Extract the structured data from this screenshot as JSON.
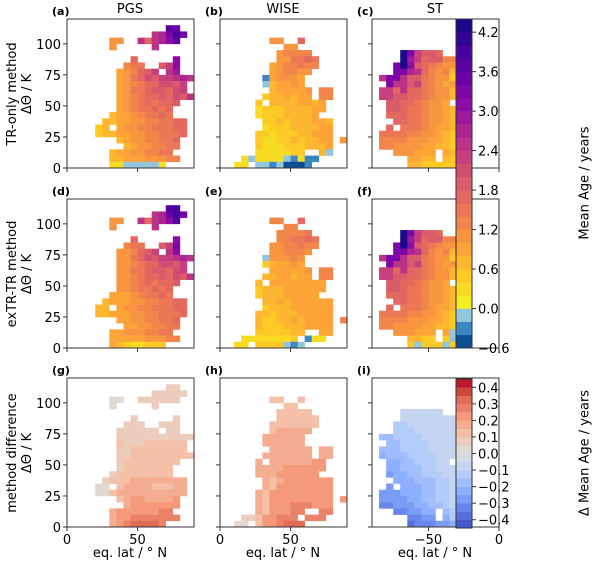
{
  "column_titles": [
    "PGS",
    "WISE",
    "ST"
  ],
  "row_labels": [
    {
      "line1": "TR-only method",
      "line2": "ΔΘ / K"
    },
    {
      "line1": "exTR-TR method",
      "line2": "ΔΘ / K"
    },
    {
      "line1": "method difference",
      "line2": "ΔΘ / K"
    }
  ],
  "xlabels": [
    "eq. lat / ° N",
    "eq. lat / ° N",
    "eq. lat / ° N"
  ],
  "colorbars": [
    {
      "label": "Mean Age / years",
      "range": [
        -0.6,
        4.4
      ],
      "ticks": [
        "4.2",
        "3.6",
        "3.0",
        "2.4",
        "1.8",
        "1.2",
        "0.6",
        "0.0",
        "−0.6"
      ],
      "tick_values": [
        4.2,
        3.6,
        3.0,
        2.4,
        1.8,
        1.2,
        0.6,
        0.0,
        -0.6
      ],
      "step": 0.2,
      "colormap": "plasma_r with blues below 0"
    },
    {
      "label": "Δ Mean Age / years",
      "range": [
        -0.45,
        0.45
      ],
      "ticks": [
        "0.4",
        "0.3",
        "0.2",
        "0.1",
        "0.0",
        "−0.1",
        "−0.2",
        "−0.3",
        "−0.4"
      ],
      "tick_values": [
        0.4,
        0.3,
        0.2,
        0.1,
        0.0,
        -0.1,
        -0.2,
        -0.3,
        -0.4
      ],
      "step": 0.05,
      "colormap": "coolwarm"
    }
  ],
  "codes": {
    "mean_age": {
      "positive_chars": "0123456789abcdefghijklm",
      "positive_step": 0.2,
      "negative": {
        "x": -0.1,
        "y": -0.3,
        "z": -0.5
      }
    },
    "difference": {
      "chars": "ABCDEFGHIJKLMNOPQR",
      "start": -0.45,
      "step": 0.05
    },
    "empty": ".",
    "theta_bin_K": 5,
    "lat_bin_deg": 5
  },
  "chart_data": [
    {
      "letter": "(a)",
      "type": "heatmap",
      "scale": "mean_age",
      "xlim": [
        0,
        90
      ],
      "ylim": [
        0,
        120
      ],
      "xticks": [
        0,
        50
      ],
      "xtick_labels": [
        "0",
        "50"
      ],
      "yticks": [
        0,
        25,
        50,
        75,
        100
      ],
      "ytick_labels": [
        "0",
        "25",
        "50",
        "75",
        "100"
      ],
      "rows_top_to_bottom": [
        "..................",
        "..............ih..",
        "............cdgjh.",
        "......55..c8cdfi..",
        "......5.....c.....",
        "..................",
        ".........8.....f..",
        "........677..9bf..",
        ".......45689b.ce..",
        ".......4578a9bbcdc",
        ".......456788aa9b.",
        ".......45778998ab.",
        ".......45678898a9c",
        ".......456787889..",
        ".......45677878...",
        "......344567787...",
        ".....334455667788.",
        "....23.4556677788.",
        "....2334455667778.",
        ".......345566778..",
        "........34556677..",
        "......344556677...",
        "......3344455566..",
        "......11xxxxx1...."
      ]
    },
    {
      "letter": "(b)",
      "type": "heatmap",
      "scale": "mean_age",
      "xlim": [
        0,
        90
      ],
      "ylim": [
        0,
        120
      ],
      "xticks": [
        0,
        50
      ],
      "xtick_labels": [
        "0",
        "50"
      ],
      "yticks": [
        0,
        25,
        50,
        75,
        100
      ],
      "ytick_labels": [],
      "rows_top_to_bottom": [
        "..................",
        "..................",
        "..................",
        ".......55..8......",
        ".........55.......",
        "........56666.....",
        "........557787....",
        ".......4566766....",
        ".......456655.....",
        "......y45554......",
        "......x34454......",
        ".......344445.66..",
        "......2334344.66..",
        ".....2.33334434...",
        ".....1222333344...",
        ".....122233334....",
        "......2232333443..",
        "......1222333344..",
        ".....22122233444..",
        ".....21122323344.5",
        ".....21112223334..",
        ".....1111122..3x..",
        "...1x1111xy1yy....",
        "..11.xxyxzzzy....."
      ]
    },
    {
      "letter": "(c)",
      "type": "heatmap",
      "scale": "mean_age",
      "xlim": [
        -90,
        0
      ],
      "ylim": [
        0,
        120
      ],
      "xticks": [
        -50,
        0
      ],
      "xtick_labels": [
        "−50",
        "0"
      ],
      "yticks": [
        0,
        25,
        50,
        75,
        100
      ],
      "ytick_labels": [],
      "rows_top_to_bottom": [
        "..................",
        "..................",
        "..................",
        "..................",
        "..................",
        "....lgb998........",
        "....leb89966......",
        "...glf987655......",
        "...ggdc86563......",
        ".cggc9976552......",
        "..gcc9b76545......",
        ".bb8c8876553......",
        ".bb998876553......",
        "..998876554.......",
        "..9987765543......",
        "..8887765543......",
        "...887765543......",
        "..8.77765443......",
        ".77776655432......",
        ".66665554432......",
        ".66555544332x.....",
        "...555444.43x.....",
        ".....4433.32x.....",
        ".....33222222....."
      ]
    },
    {
      "letter": "(d)",
      "type": "heatmap",
      "scale": "mean_age",
      "xlim": [
        0,
        90
      ],
      "ylim": [
        0,
        120
      ],
      "xticks": [
        0,
        50
      ],
      "xtick_labels": [
        "0",
        "50"
      ],
      "yticks": [
        0,
        25,
        50,
        75,
        100
      ],
      "ytick_labels": [
        "0",
        "25",
        "50",
        "75",
        "100"
      ],
      "rows_top_to_bottom": [
        "..................",
        "..............ij..",
        "............cdhjh.",
        "......55..c8cdfi..",
        "......5.....c.....",
        "..................",
        ".........8.....f..",
        "........677..9bg..",
        ".......55689b.cf..",
        ".......5578a9bbcdc",
        ".......556788aa9b.",
        ".......55778998ab.",
        ".......55678898a9c",
        ".......556787889..",
        ".......55677878...",
        "......444567787...",
        ".....344455667788.",
        "....33.4556677788.",
        "....3344455667778.",
        ".......445566778..",
        "........44556677..",
        "......445556677...",
        "......4444455566..",
        "......43211222...."
      ]
    },
    {
      "letter": "(e)",
      "type": "heatmap",
      "scale": "mean_age",
      "xlim": [
        0,
        90
      ],
      "ylim": [
        0,
        120
      ],
      "xticks": [
        0,
        50
      ],
      "xtick_labels": [
        "0",
        "50"
      ],
      "yticks": [
        0,
        25,
        50,
        75,
        100
      ],
      "ytick_labels": [],
      "rows_top_to_bottom": [
        "..................",
        "..................",
        "..................",
        ".......66..8......",
        ".........66.......",
        "........66667.....",
        "........667787....",
        ".......5566766....",
        ".......556665.....",
        "......x55565......",
        "......234454......",
        ".......444445.66..",
        "......3344344.66..",
        ".....3.44444444...",
        ".....2333444444...",
        ".....233344444....",
        "......3343444444..",
        "......2333444444..",
        ".....33233344444..",
        ".....32233434444.6",
        ".....32223334444..",
        ".....2222233..44..",
        "...11111112.y11...",
        "..11.2222xyx......"
      ]
    },
    {
      "letter": "(f)",
      "type": "heatmap",
      "scale": "mean_age",
      "xlim": [
        -90,
        0
      ],
      "ylim": [
        0,
        120
      ],
      "xticks": [
        -50,
        0
      ],
      "xtick_labels": [
        "−50",
        "0"
      ],
      "yticks": [
        0,
        25,
        50,
        75,
        100
      ],
      "ytick_labels": [],
      "rows_top_to_bottom": [
        "..................",
        "..................",
        "..................",
        "..................",
        "..................",
        "....lgb998........",
        "....leb89966......",
        "...glf987655......",
        "...ggdc86563......",
        ".cggc9976552......",
        "..gcc9b76545......",
        ".bb8c8876553......",
        ".bb998876553......",
        "..998876554.......",
        "..9987765543......",
        "..8887765543......",
        "...887765543......",
        "..8.77765443......",
        ".77776655432......",
        ".66665554432......",
        ".66555544332x.....",
        "...555444.4xx.....",
        ".....3322.2xx.....",
        ".....2x222x2x....."
      ]
    },
    {
      "letter": "(g)",
      "type": "heatmap",
      "scale": "difference",
      "xlim": [
        0,
        90
      ],
      "ylim": [
        0,
        120
      ],
      "xticks": [
        0,
        50
      ],
      "xtick_labels": [
        "0",
        "50"
      ],
      "yticks": [
        0,
        25,
        50,
        75,
        100
      ],
      "ytick_labels": [
        "0",
        "25",
        "50",
        "75",
        "100"
      ],
      "rows_top_to_bottom": [
        "..................",
        "..............KK..",
        "............KKKKK.",
        "......JJ..KKKKKK..",
        "......J.....K.....",
        "..................",
        ".........K.....K..",
        "........KKK..KKK..",
        ".......KKKKKK.KK..",
        ".......KKKKKKKKKKK",
        ".......LKKKLLLLLL.",
        ".......KKLLLLLLLL.",
        ".......KKLLLLLLLLL",
        ".......KLLLLLLLL..",
        ".......KLLLLLLL...",
        "......KLLLLLLLL...",
        ".....KLLLMMMMMMMM.",
        "....JJ.LMMMMLLLMM.",
        "....JJLMMMMMMMMMM.",
        ".......LMNNMMMMN..",
        "........MNNNNNNN..",
        "......MNNNNNNOO...",
        "......MNNOOOOOOO..",
        "......MNOPPPPO...."
      ]
    },
    {
      "letter": "(h)",
      "type": "heatmap",
      "scale": "difference",
      "xlim": [
        0,
        90
      ],
      "ylim": [
        0,
        120
      ],
      "xticks": [
        0,
        50
      ],
      "xtick_labels": [
        "0",
        "50"
      ],
      "yticks": [
        0,
        25,
        50,
        75,
        100
      ],
      "ytick_labels": [],
      "rows_top_to_bottom": [
        "..................",
        "..................",
        "..................",
        ".......LL..L......",
        ".........LL.......",
        "........LLLLL.....",
        "........LLLLLL....",
        ".......LLLLLLL....",
        ".......LMMMMM.....",
        "......MMMMMM......",
        "......MMMMMM......",
        ".......MMMMMM.MM..",
        "......MMMMMMM.MM..",
        ".....M.MMMMMMNN...",
        ".....MMMMNNNNNN...",
        ".....MMMNNNNNN....",
        "......MLMNNNNNNN..",
        "......MLNNNNNNNN..",
        ".....MLNNNNNNNNN..",
        ".....MLNNNNNNNNN.N",
        ".....MLNNNOOONNN..",
        ".....MLNNNOO..OO..",
        "...KKLNNOOO.OOO...",
        "..JJ.LNNOPPP......"
      ]
    },
    {
      "letter": "(i)",
      "type": "heatmap",
      "scale": "difference",
      "xlim": [
        -90,
        0
      ],
      "ylim": [
        0,
        120
      ],
      "xticks": [
        -50,
        0
      ],
      "xtick_labels": [
        "−50",
        "0"
      ],
      "yticks": [
        0,
        25,
        50,
        75,
        100
      ],
      "ytick_labels": [],
      "rows_top_to_bottom": [
        "..................",
        "..................",
        "..................",
        "..................",
        "..................",
        "....HHHHHH........",
        "....HHHHHHHH......",
        "...GGHHHHHHH......",
        "...GGGHHHHHH......",
        ".FFGGGGHHHHH......",
        "..FFGGGGHHHH......",
        ".FFFGGGGHHHH......",
        ".EFFFGGGGHHH......",
        "..EEFFGGGHH.......",
        "..EEFFFGGHHH......",
        "..DEEFFGGGHH......",
        "...EEEFFFGGH......",
        "..D.EEEFFGGH......",
        ".DDDEEEFFGGH......",
        ".DDDDEEFFGGH......",
        ".CCDDDEEFFGHI.....",
        "...CCDDEE.FGH.....",
        ".....CCDD.EGH.....",
        ".....BCCCDDEG....."
      ]
    }
  ]
}
